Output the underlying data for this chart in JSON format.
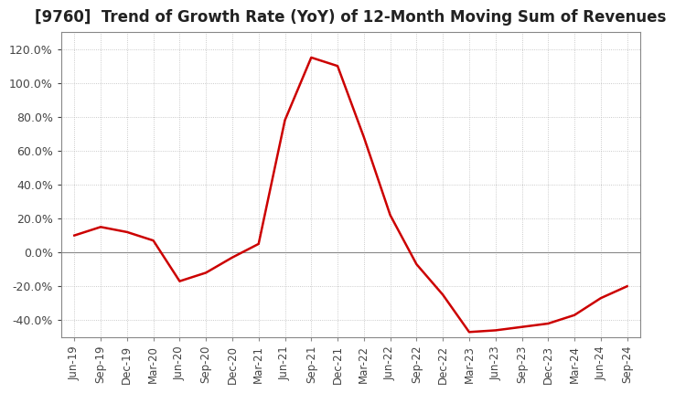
{
  "title": "[9760]  Trend of Growth Rate (YoY) of 12-Month Moving Sum of Revenues",
  "title_fontsize": 12,
  "background_color": "#ffffff",
  "plot_bg_color": "#ffffff",
  "line_color": "#cc0000",
  "yticks": [
    -0.4,
    -0.2,
    0.0,
    0.2,
    0.4,
    0.6,
    0.8,
    1.0,
    1.2
  ],
  "ylim": [
    -0.5,
    1.3
  ],
  "x_labels": [
    "Jun-19",
    "Sep-19",
    "Dec-19",
    "Mar-20",
    "Jun-20",
    "Sep-20",
    "Dec-20",
    "Mar-21",
    "Jun-21",
    "Sep-21",
    "Dec-21",
    "Mar-22",
    "Jun-22",
    "Sep-22",
    "Dec-22",
    "Mar-23",
    "Jun-23",
    "Sep-23",
    "Dec-23",
    "Mar-24",
    "Jun-24",
    "Sep-24"
  ],
  "x_values": [
    0,
    1,
    2,
    3,
    4,
    5,
    6,
    7,
    8,
    9,
    10,
    11,
    12,
    13,
    14,
    15,
    16,
    17,
    18,
    19,
    20,
    21
  ],
  "y_values": [
    0.1,
    0.15,
    0.12,
    0.07,
    -0.17,
    -0.12,
    -0.03,
    0.05,
    0.78,
    1.15,
    1.1,
    0.68,
    0.22,
    -0.07,
    -0.25,
    -0.47,
    -0.46,
    -0.44,
    -0.42,
    -0.37,
    -0.27,
    -0.2
  ],
  "grid_color": "#bbbbbb",
  "tick_color": "#444444",
  "spine_color": "#888888",
  "zero_line_color": "#888888",
  "line_width": 1.8
}
